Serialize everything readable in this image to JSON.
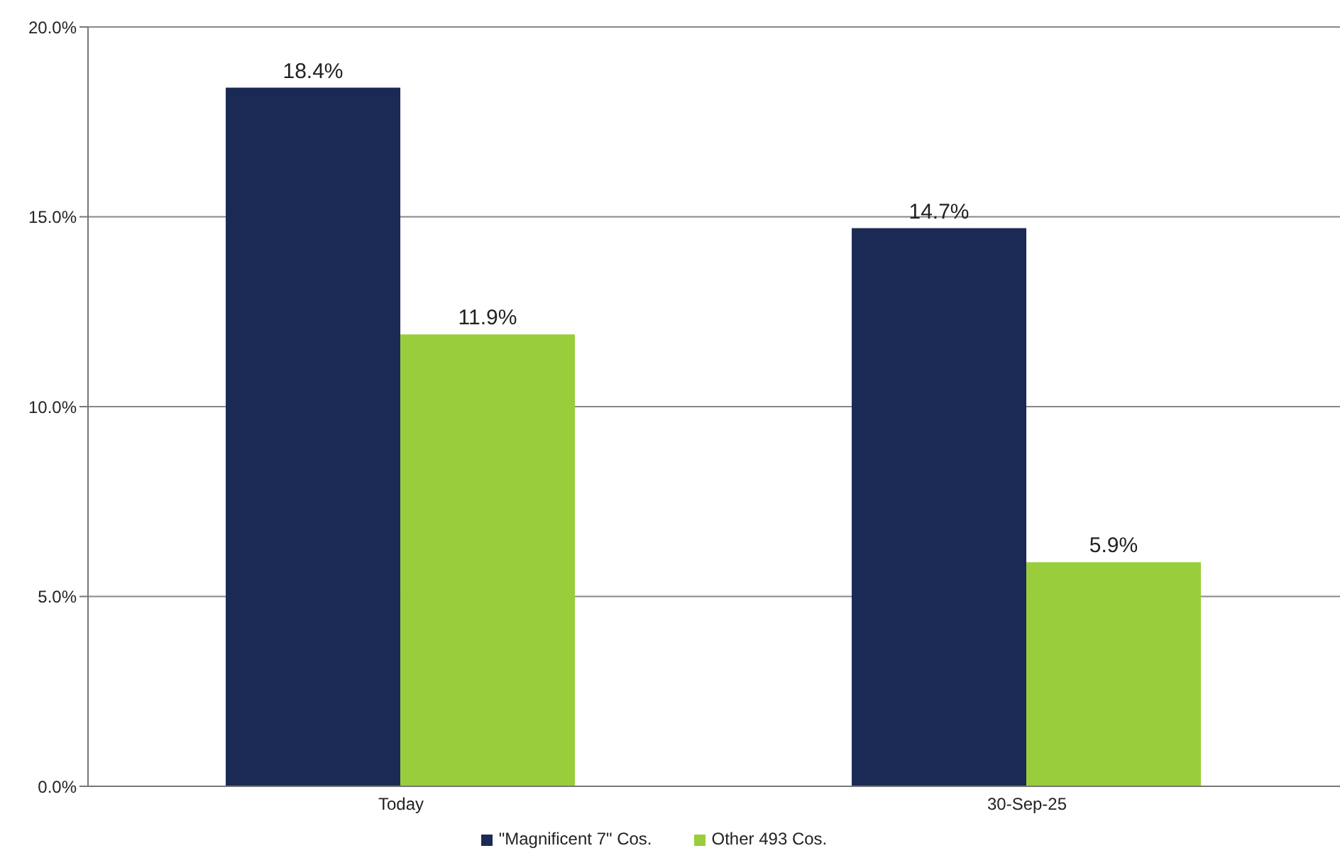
{
  "chart_data": {
    "type": "bar",
    "categories": [
      "Today",
      "30-Sep-25"
    ],
    "series": [
      {
        "name": "\"Magnificent 7\" Cos.",
        "color": "#1b2a55",
        "values": [
          18.4,
          14.7
        ],
        "value_labels": [
          "18.4%",
          "14.7%"
        ]
      },
      {
        "name": "Other 493 Cos.",
        "color": "#9acd3c",
        "values": [
          11.9,
          5.9
        ],
        "value_labels": [
          "11.9%",
          "5.9%"
        ]
      }
    ],
    "ylim": [
      0,
      20
    ],
    "yticks": [
      {
        "value": 0,
        "label": "0.0%"
      },
      {
        "value": 5,
        "label": "5.0%"
      },
      {
        "value": 10,
        "label": "10.0%"
      },
      {
        "value": 15,
        "label": "15.0%"
      },
      {
        "value": 20,
        "label": "20.0%"
      }
    ],
    "grid": "y",
    "legend": "bottom"
  }
}
